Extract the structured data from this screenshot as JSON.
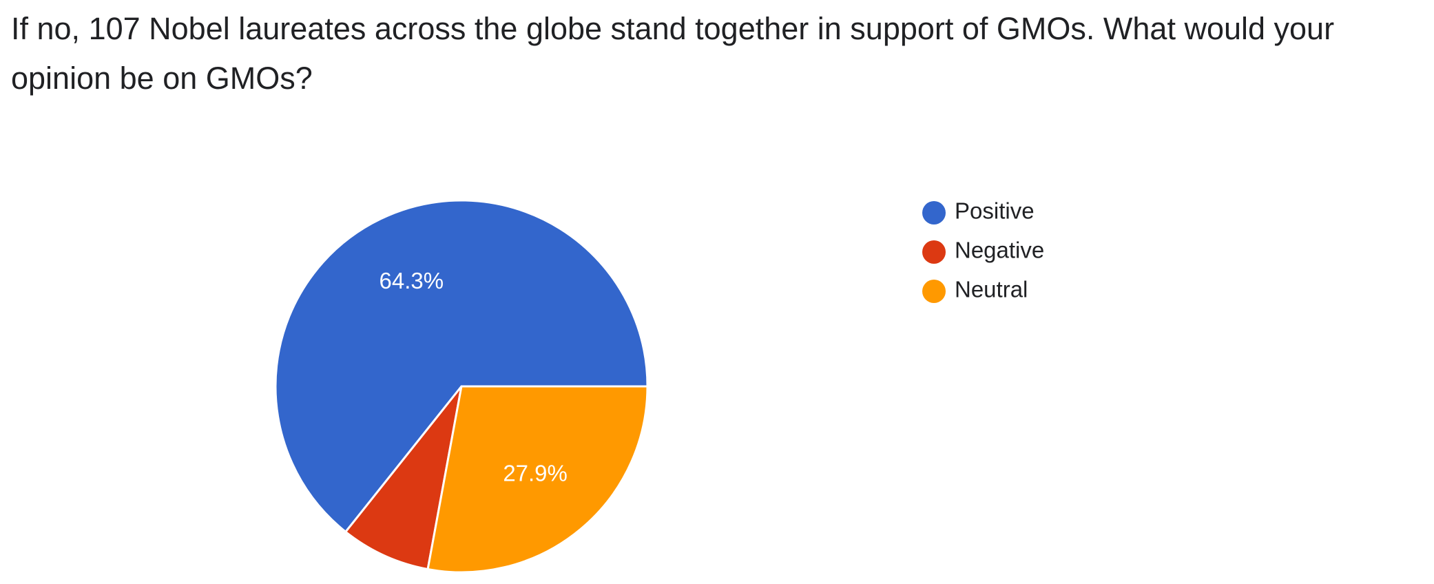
{
  "question": {
    "title": "If no, 107 Nobel laureates across the globe stand together in support of GMOs. What would your opinion be on GMOs?"
  },
  "chart_data": {
    "type": "pie",
    "title": "",
    "categories": [
      "Positive",
      "Negative",
      "Neutral"
    ],
    "values": [
      64.3,
      7.8,
      27.9
    ],
    "value_labels": [
      "64.3%",
      "",
      "27.9%"
    ],
    "colors": [
      "#3366cc",
      "#dc3912",
      "#ff9900"
    ],
    "start_angle_deg": 0,
    "direction": "counterclockwise",
    "legend": {
      "position": "right",
      "items": [
        {
          "label": "Positive",
          "color": "#3366cc"
        },
        {
          "label": "Negative",
          "color": "#dc3912"
        },
        {
          "label": "Neutral",
          "color": "#ff9900"
        }
      ]
    }
  }
}
